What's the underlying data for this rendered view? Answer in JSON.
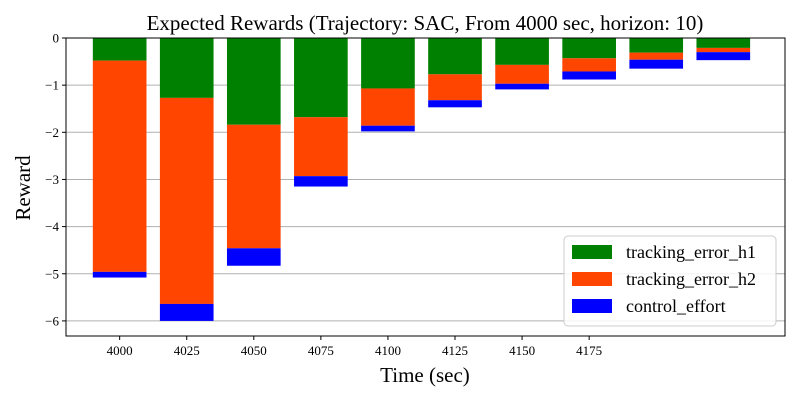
{
  "chart_data": {
    "type": "bar",
    "stacked": true,
    "title": "Expected Rewards (Trajectory: SAC, From 4000 sec, horizon: 10)",
    "xlabel": "Time (sec)",
    "ylabel": "Reward",
    "x": [
      4000,
      4025,
      4050,
      4075,
      4100,
      4125,
      4150,
      4175,
      4200,
      4225
    ],
    "x_ticks": [
      4000,
      4025,
      4050,
      4075,
      4100,
      4125,
      4150,
      4175
    ],
    "x_tick_labels": [
      "4000",
      "4025",
      "4050",
      "4075",
      "4100",
      "4125",
      "4150",
      "4175"
    ],
    "bar_width": 20,
    "xlim": [
      3980,
      4248
    ],
    "ylim": [
      -6.32,
      0.0
    ],
    "y_ticks": [
      0,
      -1,
      -2,
      -3,
      -4,
      -5,
      -6
    ],
    "y_tick_labels": [
      "0",
      "−1",
      "−2",
      "−3",
      "−4",
      "−5",
      "−6"
    ],
    "grid": "horizontal",
    "legend_position": "lower-right",
    "series": [
      {
        "name": "tracking_error_h1",
        "color": "#008000",
        "values": [
          -0.48,
          -1.27,
          -1.84,
          -1.68,
          -1.07,
          -0.77,
          -0.57,
          -0.43,
          -0.31,
          -0.21
        ]
      },
      {
        "name": "tracking_error_h2",
        "color": "#FF4500",
        "values": [
          -4.48,
          -4.37,
          -2.62,
          -1.25,
          -0.79,
          -0.55,
          -0.4,
          -0.28,
          -0.15,
          -0.09
        ]
      },
      {
        "name": "control_effort",
        "color": "#0000FF",
        "values": [
          -0.12,
          -0.36,
          -0.37,
          -0.22,
          -0.12,
          -0.15,
          -0.12,
          -0.17,
          -0.19,
          -0.17
        ]
      }
    ]
  }
}
